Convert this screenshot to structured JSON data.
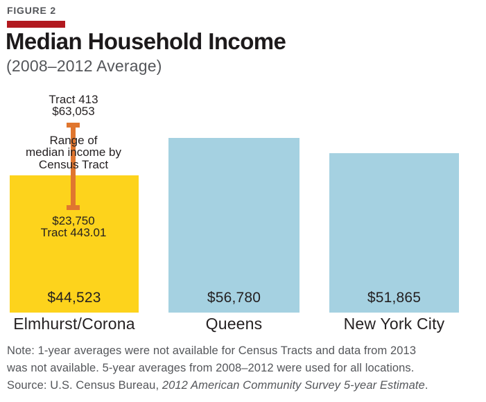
{
  "figure_label": "FIGURE 2",
  "title": "Median Household Income",
  "subtitle": "(2008–2012 Average)",
  "annotation": {
    "top_tract_label": "Tract 413",
    "top_tract_value": "$63,053",
    "range_line1": "Range of",
    "range_line2": "median income by",
    "range_line3": "Census Tract",
    "bottom_tract_value": "$23,750",
    "bottom_tract_label": "Tract 443.01"
  },
  "chart_data": {
    "type": "bar",
    "title": "Median Household Income",
    "subtitle": "(2008–2012 Average)",
    "categories": [
      "Elmhurst/Corona",
      "Queens",
      "New York City"
    ],
    "values": [
      44523,
      56780,
      51865
    ],
    "value_labels": [
      "$44,523",
      "$56,780",
      "$51,865"
    ],
    "bar_colors": [
      "#fdd31c",
      "#a5d1e1",
      "#a5d1e1"
    ],
    "ylim": [
      0,
      63053
    ],
    "grid": false,
    "legend": "none",
    "range_annotation": {
      "applies_to": "Elmhurst/Corona",
      "label": "Range of median income by Census Tract",
      "high_tract": "Tract 413",
      "high_value": 63053,
      "low_tract": "Tract 443.01",
      "low_value": 23750,
      "indicator_color": "#e0762f"
    }
  },
  "note": {
    "line1": "Note: 1-year averages were not available for Census Tracts and data from 2013",
    "line2": "was not available. 5-year averages from 2008–2012 were used for all locations.",
    "source_prefix": "Source: U.S. Census Bureau, ",
    "source_italic": "2012 American Community Survey 5-year Estimate",
    "source_suffix": "."
  },
  "colors": {
    "highlight_bar": "#fdd31c",
    "comparison_bar": "#a5d1e1",
    "range_indicator": "#e0762f",
    "accent_rule": "#b2191f",
    "dark_text": "#231f20",
    "muted_text": "#54565a"
  }
}
